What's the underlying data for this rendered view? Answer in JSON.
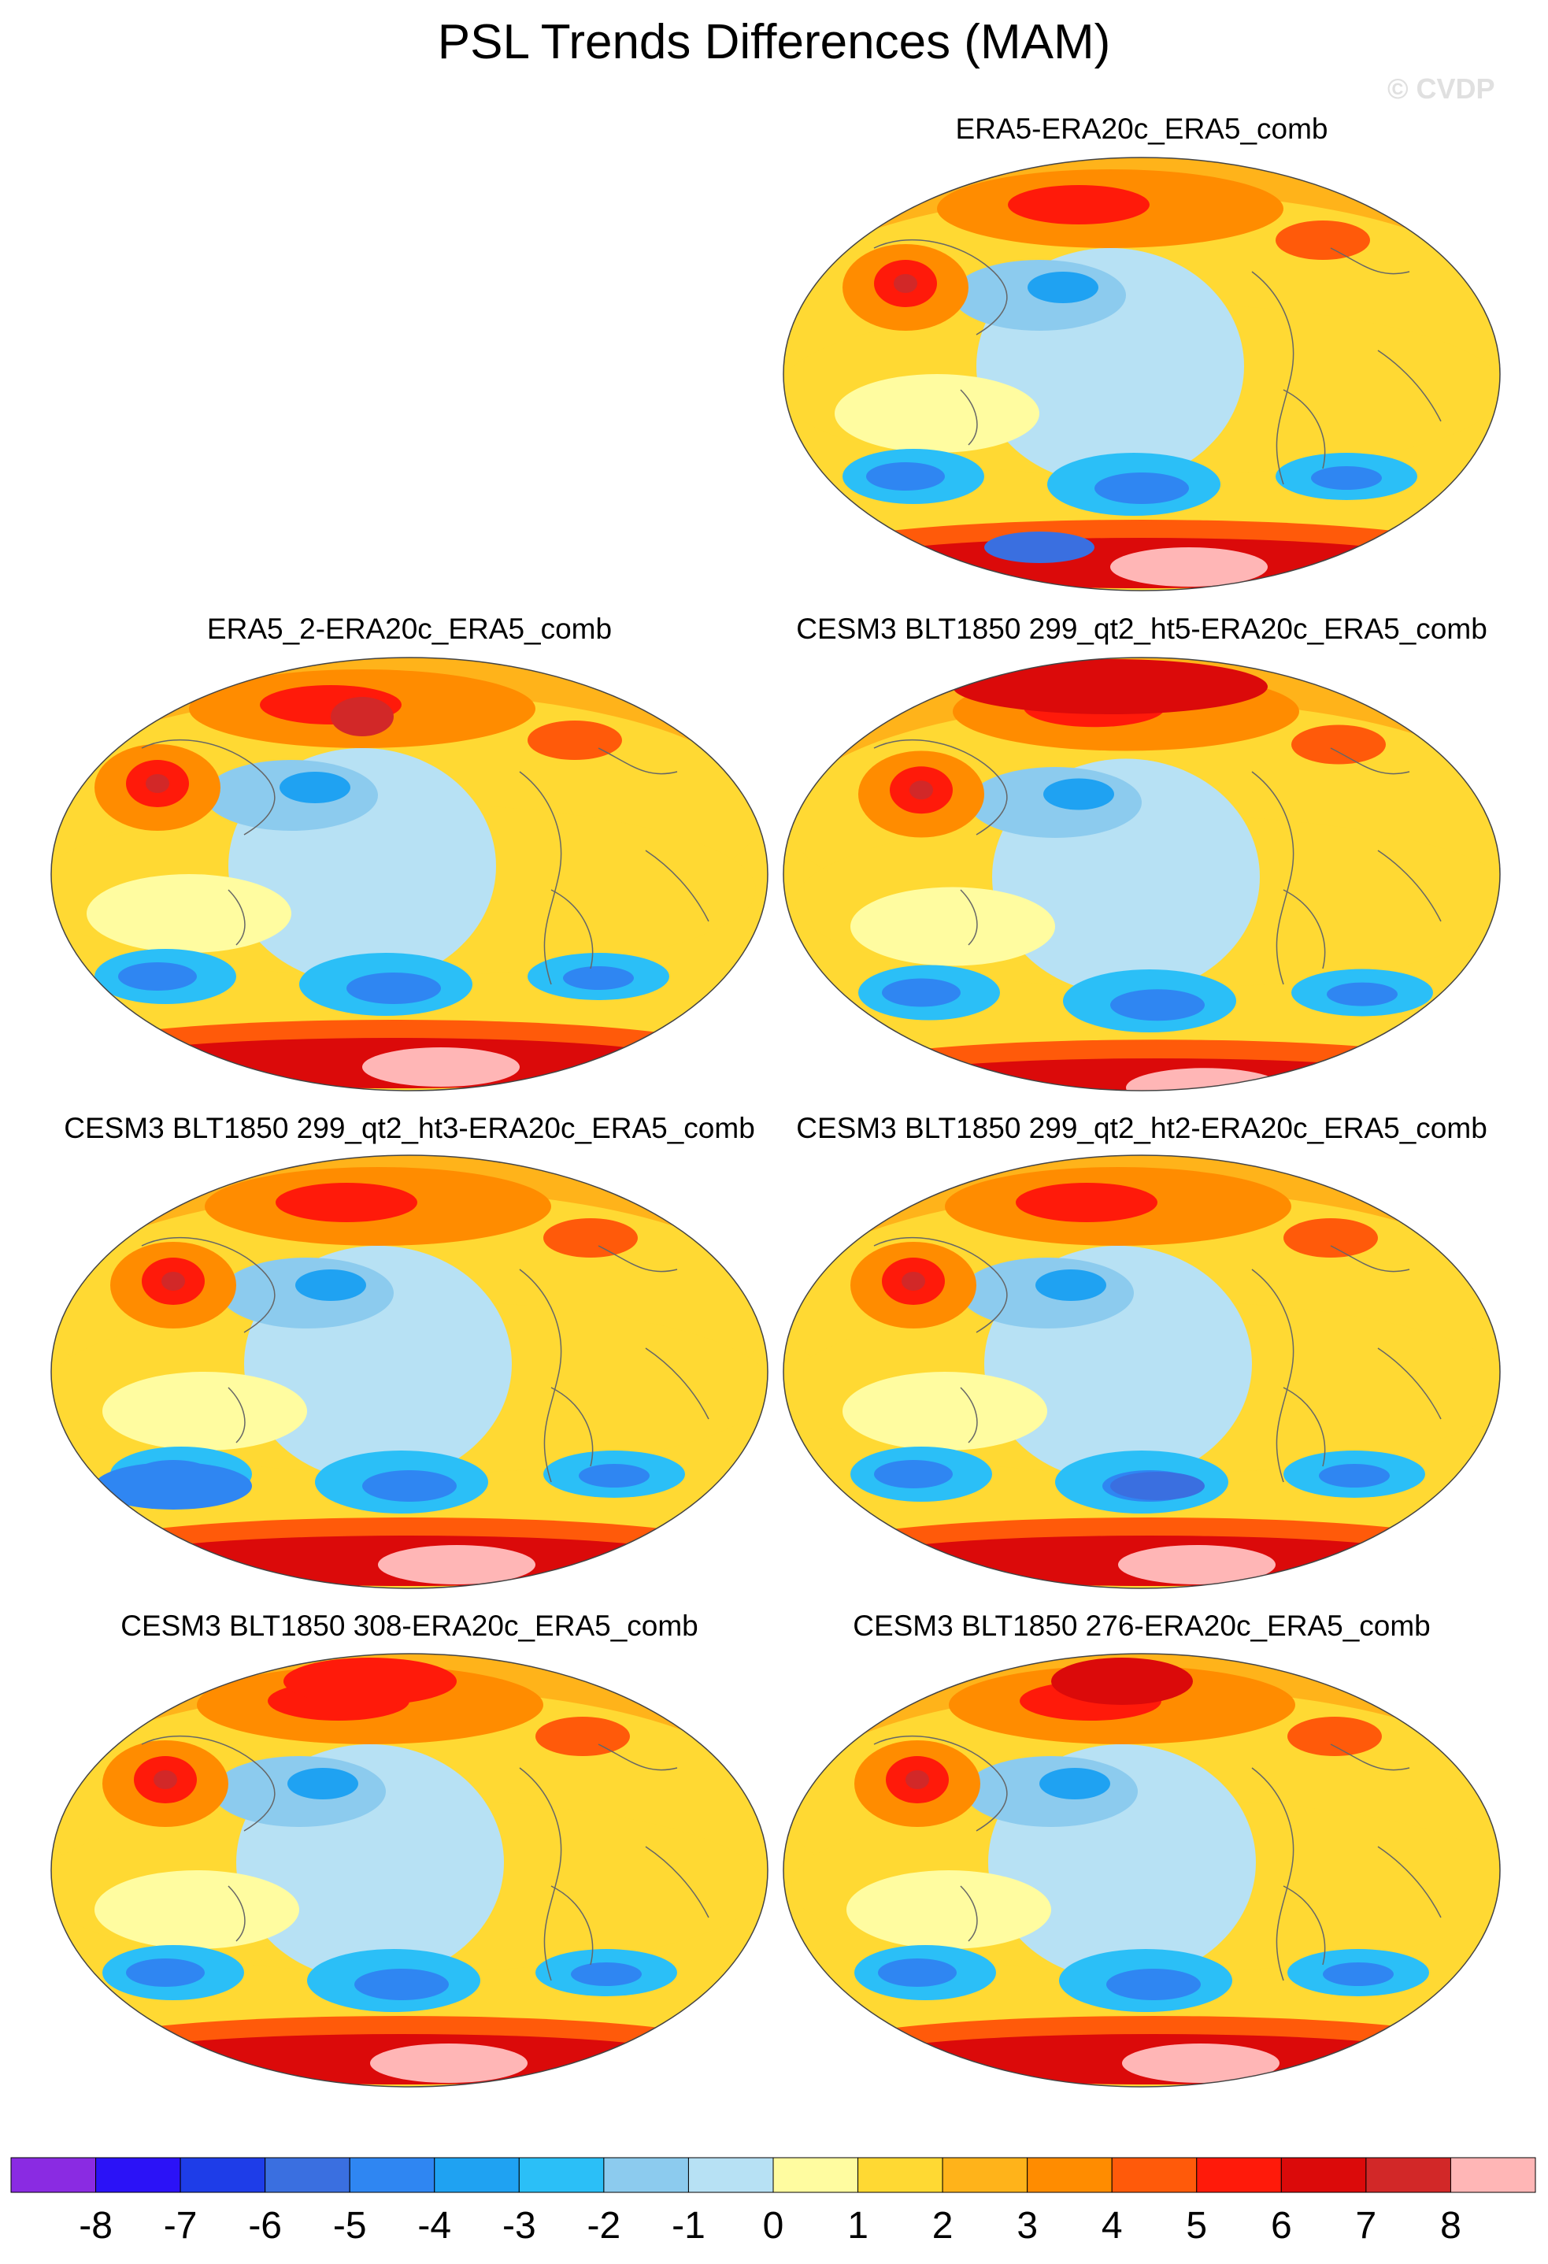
{
  "title": "PSL Trends Differences (MAM)",
  "watermark": "© CVDP",
  "panels": [
    {
      "id": "p1",
      "title": "ERA5-ERA20c_ERA5_comb"
    },
    {
      "id": "p2",
      "title": "ERA5_2-ERA20c_ERA5_comb"
    },
    {
      "id": "p3",
      "title": "CESM3 BLT1850 299_qt2_ht5-ERA20c_ERA5_comb"
    },
    {
      "id": "p4",
      "title": "CESM3 BLT1850 299_qt2_ht3-ERA20c_ERA5_comb"
    },
    {
      "id": "p5",
      "title": "CESM3 BLT1850 299_qt2_ht2-ERA20c_ERA5_comb"
    },
    {
      "id": "p6",
      "title": "CESM3 BLT1850 308-ERA20c_ERA5_comb"
    },
    {
      "id": "p7",
      "title": "CESM3 BLT1850 276-ERA20c_ERA5_comb"
    }
  ],
  "colorbar": {
    "labels": [
      "-8",
      "-7",
      "-6",
      "-5",
      "-4",
      "-3",
      "-2",
      "-1",
      "0",
      "1",
      "2",
      "3",
      "4",
      "5",
      "6",
      "7",
      "8"
    ],
    "colors": [
      "#8a2be2",
      "#2b12f7",
      "#1e3de8",
      "#3a6fe0",
      "#2f86f2",
      "#1fa2f2",
      "#2bbff7",
      "#8ccbee",
      "#b7e1f4",
      "#fffca0",
      "#ffd933",
      "#ffb31a",
      "#ff8c00",
      "#ff5a0a",
      "#ff1a0a",
      "#db0a0a",
      "#d22828",
      "#ffb6b6"
    ]
  }
}
